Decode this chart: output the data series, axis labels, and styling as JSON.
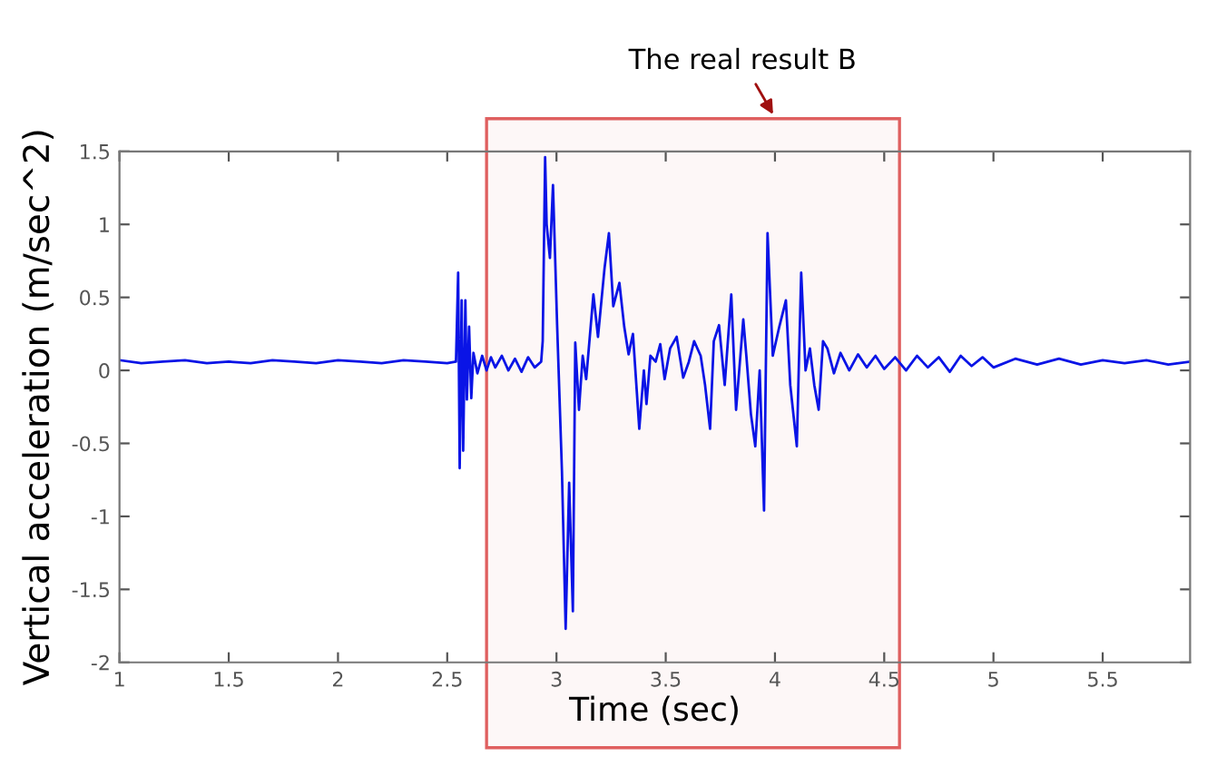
{
  "chart_data": {
    "type": "line",
    "xlabel": "Time (sec)",
    "ylabel": "Vertical acceleration (m/sec^2)",
    "x": [
      1.0,
      1.1,
      1.2,
      1.3,
      1.4,
      1.5,
      1.6,
      1.7,
      1.8,
      1.9,
      2.0,
      2.1,
      2.2,
      2.3,
      2.4,
      2.5,
      2.54,
      2.55,
      2.557,
      2.566,
      2.573,
      2.583,
      2.59,
      2.6,
      2.61,
      2.62,
      2.638,
      2.66,
      2.68,
      2.7,
      2.72,
      2.75,
      2.78,
      2.81,
      2.84,
      2.87,
      2.9,
      2.93,
      2.937,
      2.948,
      2.955,
      2.97,
      2.984,
      3.003,
      3.025,
      3.042,
      3.058,
      3.075,
      3.086,
      3.103,
      3.12,
      3.136,
      3.169,
      3.19,
      3.22,
      3.24,
      3.26,
      3.288,
      3.31,
      3.33,
      3.35,
      3.379,
      3.4,
      3.412,
      3.43,
      3.454,
      3.475,
      3.495,
      3.52,
      3.55,
      3.58,
      3.606,
      3.63,
      3.66,
      3.68,
      3.703,
      3.72,
      3.744,
      3.77,
      3.8,
      3.822,
      3.855,
      3.869,
      3.89,
      3.91,
      3.93,
      3.95,
      3.966,
      3.99,
      4.02,
      4.05,
      4.07,
      4.1,
      4.12,
      4.14,
      4.16,
      4.18,
      4.2,
      4.22,
      4.24,
      4.27,
      4.3,
      4.34,
      4.38,
      4.42,
      4.46,
      4.5,
      4.55,
      4.6,
      4.65,
      4.7,
      4.75,
      4.8,
      4.85,
      4.9,
      4.95,
      5.0,
      5.1,
      5.2,
      5.3,
      5.4,
      5.5,
      5.6,
      5.7,
      5.8,
      5.9
    ],
    "series": [
      {
        "color": "#0a14e6",
        "values": [
          0.07,
          0.05,
          0.06,
          0.07,
          0.05,
          0.06,
          0.05,
          0.07,
          0.06,
          0.05,
          0.07,
          0.06,
          0.05,
          0.07,
          0.06,
          0.05,
          0.06,
          0.67,
          -0.67,
          0.48,
          -0.55,
          0.48,
          -0.2,
          0.3,
          -0.19,
          0.12,
          -0.02,
          0.1,
          0.0,
          0.09,
          0.02,
          0.1,
          0.0,
          0.08,
          -0.01,
          0.09,
          0.02,
          0.06,
          0.2,
          1.46,
          1.0,
          0.77,
          1.27,
          0.31,
          -0.69,
          -1.77,
          -0.77,
          -1.65,
          0.19,
          -0.27,
          0.1,
          -0.06,
          0.52,
          0.23,
          0.7,
          0.94,
          0.44,
          0.6,
          0.3,
          0.11,
          0.25,
          -0.4,
          0.0,
          -0.23,
          0.1,
          0.06,
          0.18,
          -0.06,
          0.15,
          0.23,
          -0.05,
          0.06,
          0.2,
          0.1,
          -0.1,
          -0.4,
          0.2,
          0.31,
          -0.1,
          0.52,
          -0.27,
          0.35,
          0.1,
          -0.3,
          -0.52,
          0.0,
          -0.96,
          0.94,
          0.1,
          0.3,
          0.48,
          -0.1,
          -0.52,
          0.67,
          0.0,
          0.15,
          -0.1,
          -0.27,
          0.2,
          0.15,
          -0.02,
          0.12,
          0.0,
          0.11,
          0.02,
          0.1,
          0.01,
          0.09,
          0.0,
          0.1,
          0.02,
          0.09,
          -0.01,
          0.1,
          0.03,
          0.09,
          0.02,
          0.08,
          0.04,
          0.08,
          0.04,
          0.07,
          0.05,
          0.07,
          0.04,
          0.06
        ]
      }
    ],
    "xlim": [
      1,
      5.9
    ],
    "xticks": [
      1,
      1.5,
      2,
      2.5,
      3,
      3.5,
      4,
      4.5,
      5,
      5.5
    ],
    "ylim": [
      -2,
      1.5
    ],
    "yticks": [
      -2,
      -1.5,
      -1,
      -0.5,
      0,
      0.5,
      1,
      1.5
    ],
    "bands": [
      {
        "axis": "x",
        "from": 2.68,
        "to": 4.57,
        "label": "The real result B",
        "color": "#e06060"
      }
    ],
    "grid": false
  }
}
